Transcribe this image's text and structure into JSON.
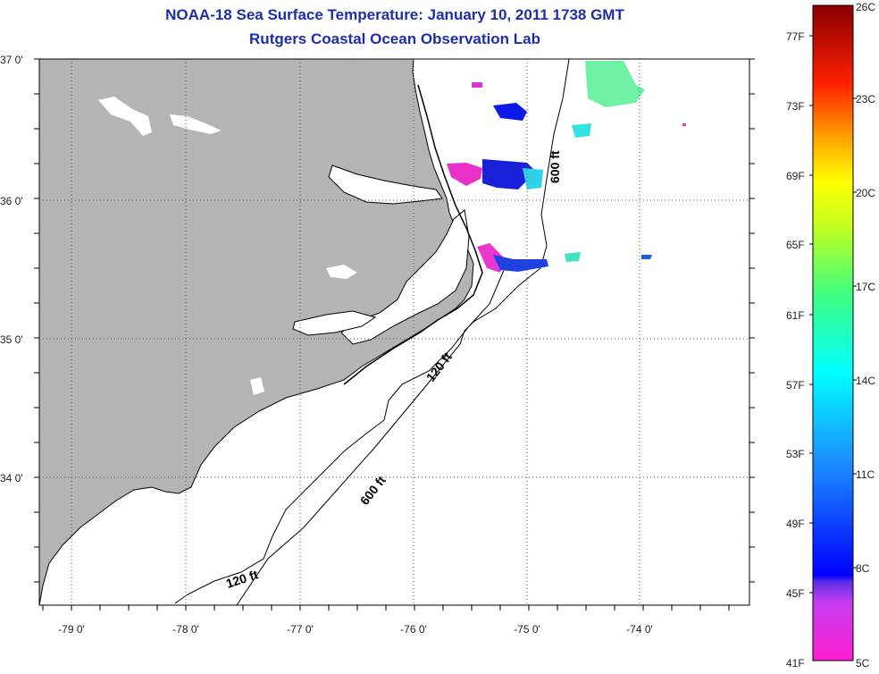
{
  "title": "NOAA-18 Sea Surface Temperature:  January 10, 2011 1738 GMT",
  "subtitle": "Rutgers Coastal Ocean Observation Lab",
  "map": {
    "lat_labels": [
      "37 0'",
      "36 0'",
      "35 0'",
      "34 0'"
    ],
    "lon_labels": [
      "-79 0'",
      "-78 0'",
      "-77 0'",
      "-76 0'",
      "-75 0'",
      "-74 0'"
    ],
    "contour_labels": [
      "600 ft",
      "120 ft",
      "600 ft",
      "120 ft"
    ],
    "colors": {
      "land": "#b4b4b4",
      "water": "#ffffff",
      "grid": "#555555"
    }
  },
  "colorbar": {
    "fahrenheit": [
      "77F",
      "73F",
      "69F",
      "65F",
      "61F",
      "57F",
      "53F",
      "49F",
      "45F",
      "41F"
    ],
    "celsius": [
      "26C",
      "23C",
      "20C",
      "17C",
      "14C",
      "11C",
      "8C",
      "5C"
    ]
  }
}
